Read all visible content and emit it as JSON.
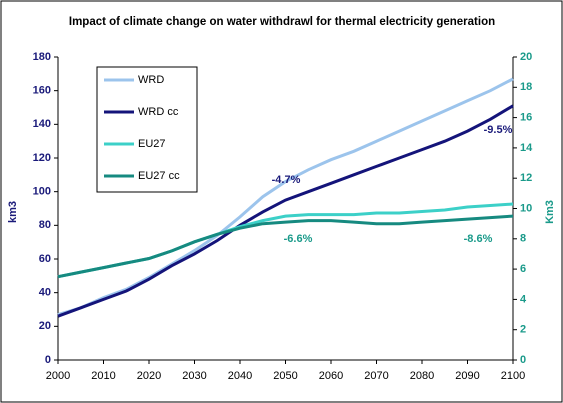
{
  "chart_data": {
    "type": "line",
    "title": "Impact of climate change on water withdrawl for thermal electricity generation",
    "y_label": "km3",
    "y2_label": "Km3",
    "x": [
      2000,
      2005,
      2010,
      2015,
      2020,
      2025,
      2030,
      2035,
      2040,
      2045,
      2050,
      2055,
      2060,
      2065,
      2070,
      2075,
      2080,
      2085,
      2090,
      2095,
      2100
    ],
    "xlim": [
      2000,
      2100
    ],
    "xticks": [
      2000,
      2010,
      2020,
      2030,
      2040,
      2050,
      2060,
      2070,
      2080,
      2090,
      2100
    ],
    "ylim": [
      0,
      180
    ],
    "yticks": [
      0,
      20,
      40,
      60,
      80,
      100,
      120,
      140,
      160,
      180
    ],
    "y2lim": [
      0,
      20
    ],
    "y2ticks": [
      0,
      2,
      4,
      6,
      8,
      10,
      12,
      14,
      16,
      18,
      20
    ],
    "series": [
      {
        "name": "WRD",
        "color": "#9cc4ec",
        "values": [
          27,
          31,
          37,
          42,
          49,
          57,
          65,
          74,
          85,
          97,
          106,
          113,
          119,
          124,
          130,
          136,
          142,
          148,
          154,
          160,
          167
        ]
      },
      {
        "name": "WRD cc",
        "color": "#14147a",
        "values": [
          26,
          31,
          36,
          41,
          48,
          56,
          63,
          71,
          80,
          88,
          95,
          100,
          105,
          110,
          115,
          120,
          125,
          130,
          136,
          143,
          151
        ]
      },
      {
        "name": "EU27",
        "color": "#3cd0c8",
        "axis": "y2",
        "values": [
          5.5,
          5.8,
          6.1,
          6.4,
          6.7,
          7.2,
          7.8,
          8.3,
          8.8,
          9.2,
          9.5,
          9.6,
          9.6,
          9.6,
          9.7,
          9.7,
          9.8,
          9.9,
          10.1,
          10.2,
          10.3
        ]
      },
      {
        "name": "EU27 cc",
        "color": "#168a80",
        "axis": "y2",
        "values": [
          5.5,
          5.8,
          6.1,
          6.4,
          6.7,
          7.2,
          7.8,
          8.3,
          8.7,
          9.0,
          9.1,
          9.2,
          9.2,
          9.1,
          9.0,
          9.0,
          9.1,
          9.2,
          9.3,
          9.4,
          9.5
        ]
      }
    ],
    "annotations": [
      "-4.7%",
      "-9.5%",
      "-6.6%",
      "-8.6%"
    ]
  }
}
